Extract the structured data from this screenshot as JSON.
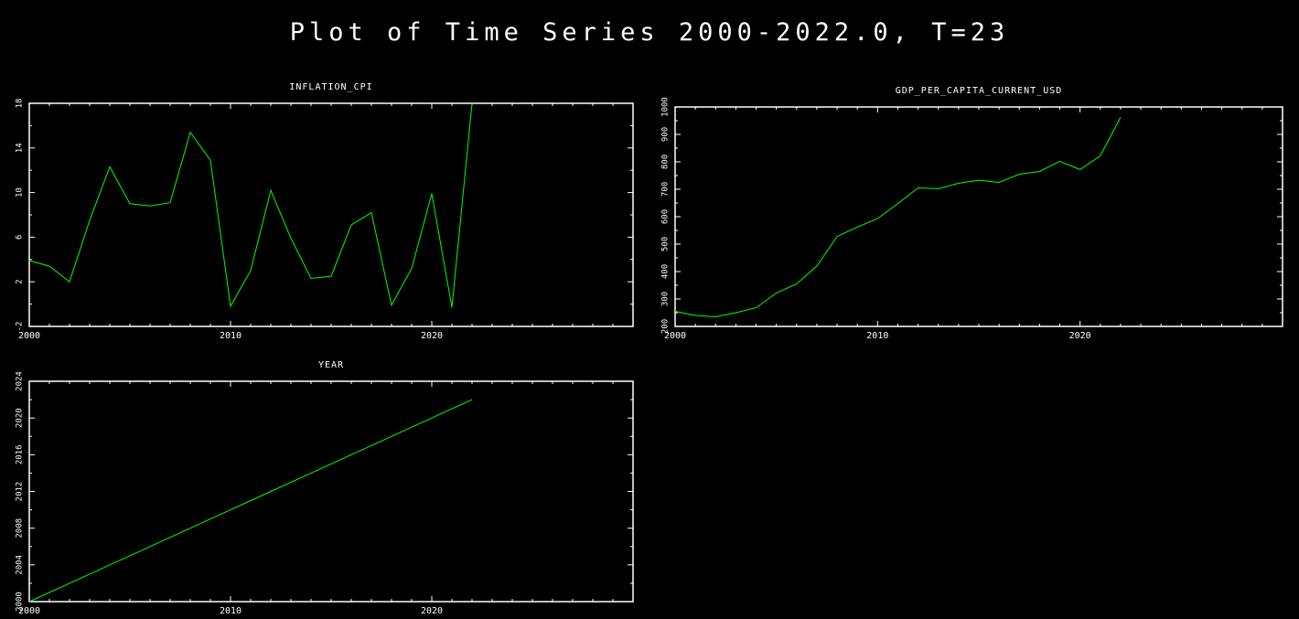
{
  "page": {
    "title": "Plot of Time Series 2000-2022.0, T=23"
  },
  "colors": {
    "background": "#000000",
    "axes": "#ffffff",
    "series": "#00ff00"
  },
  "chart_data": [
    {
      "type": "line",
      "title": "INFLATION_CPI",
      "xlim": [
        2000,
        2030
      ],
      "ylim": [
        -2,
        18
      ],
      "xticks": [
        2000,
        2010,
        2020
      ],
      "yticks": [
        -2,
        2,
        6,
        10,
        14,
        18
      ],
      "x": [
        2000,
        2001,
        2002,
        2003,
        2004,
        2005,
        2006,
        2007,
        2008,
        2009,
        2010,
        2011,
        2012,
        2013,
        2014,
        2015,
        2016,
        2017,
        2018,
        2019,
        2020,
        2021,
        2022
      ],
      "values": [
        3.9,
        3.4,
        2.0,
        7.5,
        12.3,
        9.0,
        8.8,
        9.1,
        15.4,
        12.9,
        -0.2,
        3.0,
        10.2,
        5.9,
        2.3,
        2.5,
        7.1,
        8.2,
        -0.1,
        3.2,
        9.9,
        -0.3,
        18.0
      ],
      "xlabel": "",
      "ylabel": "",
      "grid": false
    },
    {
      "type": "line",
      "title": "GDP_PER_CAPITA_CURRENT_USD",
      "xlim": [
        2000,
        2030
      ],
      "ylim": [
        200,
        1000
      ],
      "xticks": [
        2000,
        2010,
        2020
      ],
      "yticks": [
        200,
        300,
        400,
        500,
        600,
        700,
        800,
        900,
        1000
      ],
      "x": [
        2000,
        2001,
        2002,
        2003,
        2004,
        2005,
        2006,
        2007,
        2008,
        2009,
        2010,
        2011,
        2012,
        2013,
        2014,
        2015,
        2016,
        2017,
        2018,
        2019,
        2020,
        2021,
        2022
      ],
      "values": [
        255,
        240,
        235,
        250,
        268,
        322,
        355,
        420,
        528,
        562,
        593,
        648,
        705,
        702,
        722,
        733,
        725,
        755,
        765,
        802,
        772,
        822,
        962
      ],
      "xlabel": "",
      "ylabel": "",
      "grid": false
    },
    {
      "type": "line",
      "title": "YEAR",
      "xlim": [
        2000,
        2030
      ],
      "ylim": [
        2000,
        2024
      ],
      "xticks": [
        2000,
        2010,
        2020
      ],
      "yticks": [
        2000,
        2004,
        2008,
        2012,
        2016,
        2020,
        2024
      ],
      "x": [
        2000,
        2001,
        2002,
        2003,
        2004,
        2005,
        2006,
        2007,
        2008,
        2009,
        2010,
        2011,
        2012,
        2013,
        2014,
        2015,
        2016,
        2017,
        2018,
        2019,
        2020,
        2021,
        2022
      ],
      "values": [
        2000,
        2001,
        2002,
        2003,
        2004,
        2005,
        2006,
        2007,
        2008,
        2009,
        2010,
        2011,
        2012,
        2013,
        2014,
        2015,
        2016,
        2017,
        2018,
        2019,
        2020,
        2021,
        2022
      ],
      "xlabel": "",
      "ylabel": "",
      "grid": false
    }
  ]
}
